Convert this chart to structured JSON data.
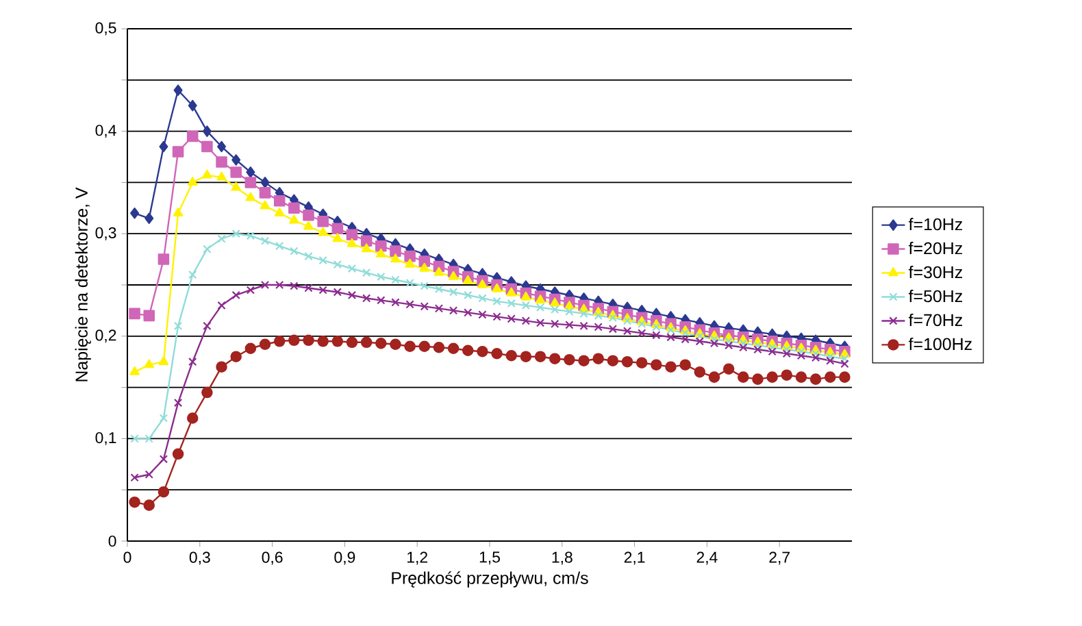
{
  "chart_data": {
    "type": "line",
    "xlabel": "Prędkość przepływu, cm/s",
    "ylabel": "Napięcie na detektorze, V",
    "x": [
      0.03,
      0.09,
      0.15,
      0.21,
      0.27,
      0.33,
      0.39,
      0.45,
      0.51,
      0.57,
      0.63,
      0.69,
      0.75,
      0.81,
      0.87,
      0.93,
      0.99,
      1.05,
      1.11,
      1.17,
      1.23,
      1.29,
      1.35,
      1.41,
      1.47,
      1.53,
      1.59,
      1.65,
      1.71,
      1.77,
      1.83,
      1.89,
      1.95,
      2.01,
      2.07,
      2.13,
      2.19,
      2.25,
      2.31,
      2.37,
      2.43,
      2.49,
      2.55,
      2.61,
      2.67,
      2.73,
      2.79,
      2.85,
      2.91,
      2.97
    ],
    "series": [
      {
        "name": "f=10Hz",
        "color": "#2b3990",
        "marker": "diamond",
        "values": [
          0.32,
          0.315,
          0.385,
          0.44,
          0.425,
          0.4,
          0.385,
          0.372,
          0.36,
          0.35,
          0.34,
          0.333,
          0.326,
          0.319,
          0.312,
          0.306,
          0.3,
          0.295,
          0.29,
          0.285,
          0.28,
          0.275,
          0.27,
          0.265,
          0.261,
          0.257,
          0.253,
          0.249,
          0.246,
          0.243,
          0.24,
          0.237,
          0.234,
          0.231,
          0.228,
          0.225,
          0.222,
          0.219,
          0.216,
          0.213,
          0.21,
          0.208,
          0.206,
          0.204,
          0.202,
          0.2,
          0.198,
          0.196,
          0.193,
          0.19
        ]
      },
      {
        "name": "f=20Hz",
        "color": "#d066b8",
        "marker": "square",
        "values": [
          0.222,
          0.22,
          0.275,
          0.38,
          0.395,
          0.385,
          0.37,
          0.36,
          0.35,
          0.34,
          0.332,
          0.325,
          0.318,
          0.312,
          0.305,
          0.299,
          0.293,
          0.288,
          0.283,
          0.278,
          0.273,
          0.268,
          0.263,
          0.258,
          0.254,
          0.25,
          0.246,
          0.242,
          0.239,
          0.236,
          0.233,
          0.23,
          0.227,
          0.224,
          0.221,
          0.218,
          0.215,
          0.212,
          0.209,
          0.206,
          0.203,
          0.201,
          0.199,
          0.197,
          0.195,
          0.193,
          0.191,
          0.189,
          0.187,
          0.185
        ]
      },
      {
        "name": "f=30Hz",
        "color": "#fff200",
        "marker": "triangle",
        "values": [
          0.165,
          0.172,
          0.175,
          0.32,
          0.35,
          0.357,
          0.355,
          0.345,
          0.335,
          0.327,
          0.32,
          0.313,
          0.307,
          0.301,
          0.295,
          0.29,
          0.285,
          0.28,
          0.275,
          0.27,
          0.266,
          0.262,
          0.258,
          0.254,
          0.25,
          0.246,
          0.242,
          0.238,
          0.235,
          0.232,
          0.229,
          0.226,
          0.223,
          0.22,
          0.217,
          0.214,
          0.211,
          0.208,
          0.205,
          0.202,
          0.2,
          0.198,
          0.196,
          0.194,
          0.192,
          0.19,
          0.188,
          0.186,
          0.184,
          0.182
        ]
      },
      {
        "name": "f=50Hz",
        "color": "#8fdcd8",
        "marker": "cross",
        "values": [
          0.1,
          0.1,
          0.12,
          0.21,
          0.26,
          0.285,
          0.295,
          0.3,
          0.298,
          0.293,
          0.288,
          0.283,
          0.278,
          0.274,
          0.27,
          0.266,
          0.262,
          0.258,
          0.255,
          0.252,
          0.249,
          0.246,
          0.243,
          0.24,
          0.237,
          0.234,
          0.232,
          0.23,
          0.228,
          0.226,
          0.224,
          0.222,
          0.22,
          0.218,
          0.215,
          0.212,
          0.209,
          0.206,
          0.203,
          0.2,
          0.197,
          0.195,
          0.193,
          0.191,
          0.189,
          0.187,
          0.185,
          0.183,
          0.18,
          0.178
        ]
      },
      {
        "name": "f=70Hz",
        "color": "#8b2c8f",
        "marker": "cross",
        "values": [
          0.062,
          0.065,
          0.08,
          0.135,
          0.175,
          0.21,
          0.23,
          0.24,
          0.245,
          0.25,
          0.25,
          0.249,
          0.247,
          0.245,
          0.243,
          0.24,
          0.237,
          0.235,
          0.233,
          0.231,
          0.229,
          0.227,
          0.225,
          0.223,
          0.221,
          0.219,
          0.217,
          0.215,
          0.213,
          0.212,
          0.211,
          0.21,
          0.209,
          0.207,
          0.205,
          0.203,
          0.201,
          0.199,
          0.197,
          0.195,
          0.193,
          0.191,
          0.189,
          0.187,
          0.185,
          0.183,
          0.181,
          0.179,
          0.176,
          0.173
        ]
      },
      {
        "name": "f=100Hz",
        "color": "#a3231f",
        "marker": "circle",
        "values": [
          0.038,
          0.035,
          0.048,
          0.085,
          0.12,
          0.145,
          0.17,
          0.18,
          0.188,
          0.192,
          0.195,
          0.196,
          0.196,
          0.195,
          0.195,
          0.194,
          0.194,
          0.193,
          0.192,
          0.19,
          0.19,
          0.189,
          0.188,
          0.186,
          0.185,
          0.183,
          0.181,
          0.18,
          0.18,
          0.178,
          0.177,
          0.176,
          0.178,
          0.176,
          0.175,
          0.174,
          0.172,
          0.17,
          0.172,
          0.165,
          0.16,
          0.168,
          0.16,
          0.158,
          0.16,
          0.162,
          0.16,
          0.158,
          0.16,
          0.16
        ]
      }
    ],
    "xlim": [
      0,
      3.0
    ],
    "xticks": [
      0,
      {
        "value": 0.3,
        "label": "0,3"
      },
      {
        "value": 0.6,
        "label": "0,6"
      },
      {
        "value": 0.9,
        "label": "0,9"
      },
      {
        "value": 1.2,
        "label": "1,2"
      },
      {
        "value": 1.5,
        "label": "1,5"
      },
      {
        "value": 1.8,
        "label": "1,8"
      },
      {
        "value": 2.1,
        "label": "2,1"
      },
      {
        "value": 2.4,
        "label": "2,4"
      },
      {
        "value": 2.7,
        "label": "2,7"
      }
    ],
    "ylim": [
      0,
      0.5
    ],
    "yticks": [
      0,
      {
        "value": 0.05,
        "label": null
      },
      {
        "value": 0.1,
        "label": "0,1"
      },
      {
        "value": 0.15,
        "label": null
      },
      {
        "value": 0.2,
        "label": "0,2"
      },
      {
        "value": 0.25,
        "label": null
      },
      {
        "value": 0.3,
        "label": "0,3"
      },
      {
        "value": 0.35,
        "label": null
      },
      {
        "value": 0.4,
        "label": "0,4"
      },
      {
        "value": 0.45,
        "label": null
      },
      {
        "value": 0.5,
        "label": "0,5"
      }
    ],
    "grid": "y",
    "legend": "right",
    "line_style": "solid"
  }
}
